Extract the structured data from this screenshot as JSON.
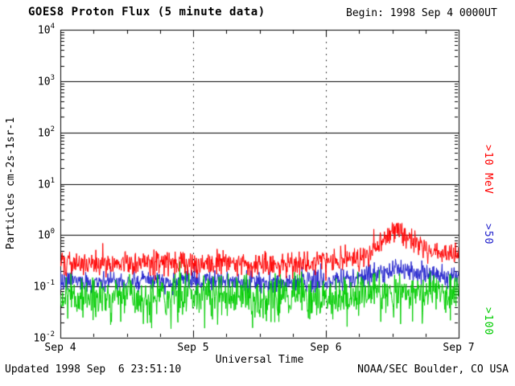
{
  "header": {
    "begin_label": "Begin: 1998 Sep 4 0000UT"
  },
  "footer": {
    "updated": "Updated 1998 Sep  6 23:51:10",
    "credit": "NOAA/SEC Boulder, CO USA"
  },
  "chart_data": {
    "type": "line",
    "title": "GOES8 Proton Flux (5 minute data)",
    "xlabel": "Universal Time",
    "ylabel": "Particles cm-2s-1sr-1",
    "x_ticks": [
      {
        "label": "Sep 4",
        "day": 0
      },
      {
        "label": "Sep 5",
        "day": 1
      },
      {
        "label": "Sep 6",
        "day": 2
      },
      {
        "label": "Sep 7",
        "day": 3
      }
    ],
    "y_tick_exponents": [
      4,
      3,
      2,
      1,
      0,
      -1,
      -2
    ],
    "ylim": [
      0.01,
      10000
    ],
    "x_range_days": [
      0,
      3
    ],
    "grid": {
      "horizontal": "solid black lines at each decade",
      "vertical": "dotted black lines at day boundaries",
      "vertical_days": [
        1,
        2
      ]
    },
    "legend_position": "right side, rotated vertical labels",
    "sample_step_minutes": 5,
    "draw_order": [
      1,
      2,
      0
    ],
    "series": [
      {
        "name": ">10 MeV",
        "color": "#ff0000",
        "seed": 101,
        "noise_sigma_log10": 0.12,
        "spike_prob": 0,
        "spike_log10": 0,
        "envelope_day_flux": [
          [
            0.0,
            0.3
          ],
          [
            0.2,
            0.26
          ],
          [
            0.4,
            0.3
          ],
          [
            0.6,
            0.27
          ],
          [
            0.8,
            0.3
          ],
          [
            1.0,
            0.28
          ],
          [
            1.2,
            0.3
          ],
          [
            1.4,
            0.27
          ],
          [
            1.6,
            0.28
          ],
          [
            1.8,
            0.3
          ],
          [
            2.0,
            0.3
          ],
          [
            2.1,
            0.32
          ],
          [
            2.2,
            0.35
          ],
          [
            2.3,
            0.4
          ],
          [
            2.35,
            0.55
          ],
          [
            2.45,
            0.9
          ],
          [
            2.5,
            1.1
          ],
          [
            2.55,
            1.2
          ],
          [
            2.6,
            1.05
          ],
          [
            2.65,
            0.85
          ],
          [
            2.7,
            0.65
          ],
          [
            2.75,
            0.55
          ],
          [
            2.8,
            0.5
          ],
          [
            2.9,
            0.42
          ],
          [
            3.0,
            0.4
          ]
        ]
      },
      {
        "name": ">50",
        "color": "#2222cc",
        "seed": 202,
        "noise_sigma_log10": 0.1,
        "spike_prob": 0,
        "spike_log10": 0,
        "envelope_day_flux": [
          [
            0.0,
            0.13
          ],
          [
            0.5,
            0.12
          ],
          [
            1.0,
            0.13
          ],
          [
            1.5,
            0.12
          ],
          [
            2.0,
            0.13
          ],
          [
            2.3,
            0.15
          ],
          [
            2.45,
            0.2
          ],
          [
            2.55,
            0.22
          ],
          [
            2.65,
            0.2
          ],
          [
            2.8,
            0.17
          ],
          [
            3.0,
            0.16
          ]
        ]
      },
      {
        "name": ">100",
        "color": "#00cc00",
        "seed": 303,
        "noise_sigma_log10": 0.2,
        "spike_prob": 0.06,
        "spike_log10": -0.45,
        "envelope_day_flux": [
          [
            0.0,
            0.065
          ],
          [
            0.5,
            0.06
          ],
          [
            1.0,
            0.065
          ],
          [
            1.5,
            0.06
          ],
          [
            2.0,
            0.065
          ],
          [
            2.5,
            0.075
          ],
          [
            3.0,
            0.075
          ]
        ]
      }
    ]
  }
}
